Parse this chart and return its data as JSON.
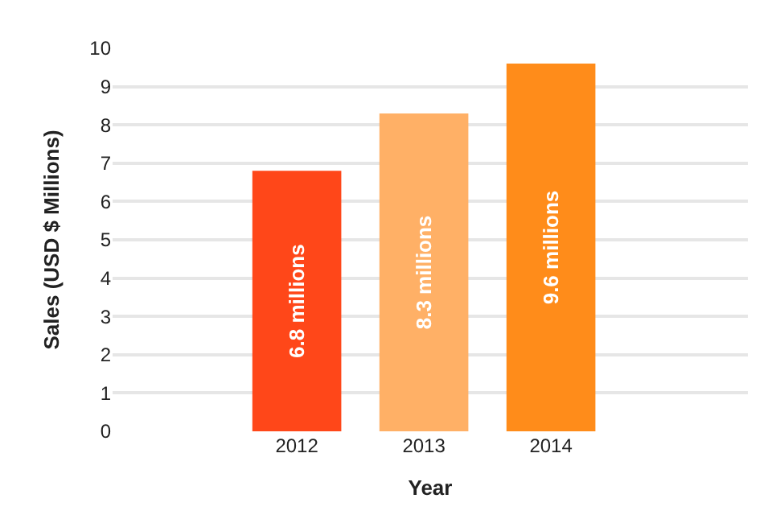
{
  "chart_data": {
    "type": "bar",
    "xlabel": "Year",
    "ylabel": "Sales (USD $ Millions)",
    "categories": [
      "2012",
      "2013",
      "2014"
    ],
    "values": [
      6.8,
      8.3,
      9.6
    ],
    "colors": [
      "#ff4719",
      "#ffb066",
      "#ff8c1a"
    ],
    "value_labels": [
      "6.8 millions",
      "8.3 millions",
      "9.6 millions"
    ],
    "ylim": [
      0,
      10
    ],
    "yticks": [
      0,
      1,
      2,
      3,
      4,
      5,
      6,
      7,
      8,
      9,
      10
    ],
    "grid": "y",
    "legend": false
  }
}
